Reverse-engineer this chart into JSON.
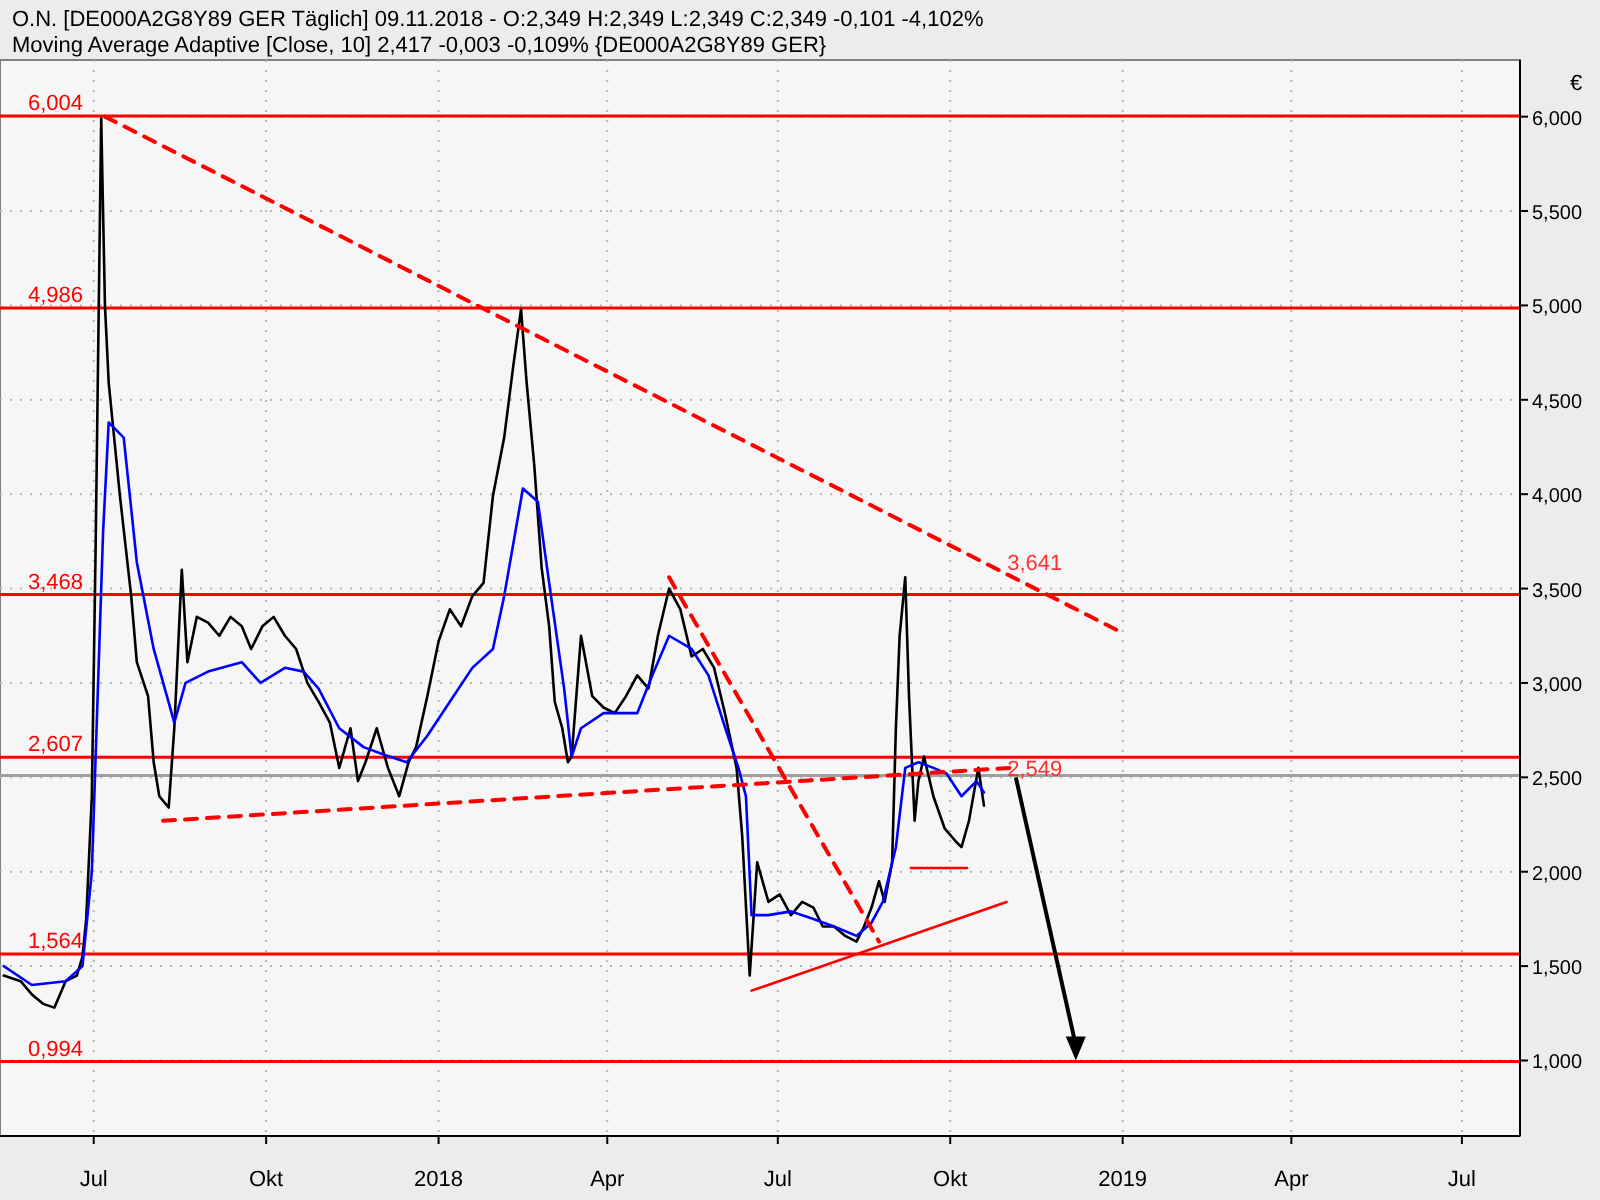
{
  "chart_data": {
    "type": "line",
    "title": "O.N. [DE000A2G8Y89 GER  Täglich] 09.11.2018 - O:2,349 H:2,349 L:2,349 C:2,349 -0,101 -4,102%",
    "subtitle": "Moving Average Adaptive [Close, 10] 2,417 -0,003 -0,109% {DE000A2G8Y89 GER}",
    "ylabel": "€",
    "xlim": [
      "2017-05-12",
      "2019-08-01"
    ],
    "ylim": [
      0.6,
      6.3
    ],
    "xticks": [
      {
        "value": "2017-07-01",
        "label": "Jul"
      },
      {
        "value": "2017-10-01",
        "label": "Okt"
      },
      {
        "value": "2018-01-01",
        "label": "2018"
      },
      {
        "value": "2018-04-01",
        "label": "Apr"
      },
      {
        "value": "2018-07-01",
        "label": "Jul"
      },
      {
        "value": "2018-10-01",
        "label": "Okt"
      },
      {
        "value": "2019-01-01",
        "label": "2019"
      },
      {
        "value": "2019-04-01",
        "label": "Apr"
      },
      {
        "value": "2019-07-01",
        "label": "Jul"
      }
    ],
    "yticks": [
      {
        "value": 1,
        "label": "1,000"
      },
      {
        "value": 1.5,
        "label": "1,500"
      },
      {
        "value": 2,
        "label": "2,000"
      },
      {
        "value": 2.5,
        "label": "2,500"
      },
      {
        "value": 3,
        "label": "3,000"
      },
      {
        "value": 3.5,
        "label": "3,500"
      },
      {
        "value": 4,
        "label": "4,000"
      },
      {
        "value": 4.5,
        "label": "4,500"
      },
      {
        "value": 5,
        "label": "5,000"
      },
      {
        "value": 5.5,
        "label": "5,500"
      },
      {
        "value": 6,
        "label": "6,000"
      }
    ],
    "grid": true,
    "series": [
      {
        "color": "#000000",
        "line_style": "solid",
        "x": [
          "2017-05-14",
          "2017-05-23",
          "2017-05-29",
          "2017-06-04",
          "2017-06-10",
          "2017-06-16",
          "2017-06-22",
          "2017-06-25",
          "2017-06-27",
          "2017-06-30",
          "2017-07-02",
          "2017-07-05",
          "2017-07-07",
          "2017-07-09",
          "2017-07-15",
          "2017-07-21",
          "2017-07-24",
          "2017-07-30",
          "2017-08-02",
          "2017-08-05",
          "2017-08-10",
          "2017-08-13",
          "2017-08-17",
          "2017-08-20",
          "2017-08-25",
          "2017-08-31",
          "2017-09-06",
          "2017-09-12",
          "2017-09-18",
          "2017-09-23",
          "2017-09-29",
          "2017-10-05",
          "2017-10-11",
          "2017-10-17",
          "2017-10-23",
          "2017-10-29",
          "2017-11-04",
          "2017-11-09",
          "2017-11-15",
          "2017-11-19",
          "2017-11-23",
          "2017-11-29",
          "2017-12-05",
          "2017-12-11",
          "2017-12-16",
          "2017-12-20",
          "2017-12-26",
          "2018-01-01",
          "2018-01-07",
          "2018-01-13",
          "2018-01-19",
          "2018-01-25",
          "2018-01-30",
          "2018-02-05",
          "2018-02-10",
          "2018-02-14",
          "2018-02-17",
          "2018-02-21",
          "2018-02-25",
          "2018-03-01",
          "2018-03-04",
          "2018-03-08",
          "2018-03-11",
          "2018-03-13",
          "2018-03-18",
          "2018-03-24",
          "2018-03-30",
          "2018-04-05",
          "2018-04-11",
          "2018-04-17",
          "2018-04-23",
          "2018-04-28",
          "2018-05-04",
          "2018-05-10",
          "2018-05-16",
          "2018-05-22",
          "2018-05-28",
          "2018-06-03",
          "2018-06-09",
          "2018-06-12",
          "2018-06-16",
          "2018-06-20",
          "2018-06-26",
          "2018-07-02",
          "2018-07-08",
          "2018-07-14",
          "2018-07-20",
          "2018-07-25",
          "2018-07-31",
          "2018-08-06",
          "2018-08-12",
          "2018-08-16",
          "2018-08-20",
          "2018-08-24",
          "2018-08-27",
          "2018-08-31",
          "2018-09-02",
          "2018-09-04",
          "2018-09-07",
          "2018-09-09",
          "2018-09-12",
          "2018-09-14",
          "2018-09-17",
          "2018-09-22",
          "2018-09-28",
          "2018-10-04",
          "2018-10-07",
          "2018-10-11",
          "2018-10-16",
          "2018-10-19"
        ],
        "values": [
          1.45,
          1.42,
          1.35,
          1.3,
          1.28,
          1.42,
          1.45,
          1.55,
          1.75,
          2.4,
          3.7,
          5.99,
          5.0,
          4.59,
          3.99,
          3.46,
          3.11,
          2.93,
          2.58,
          2.4,
          2.34,
          2.76,
          3.6,
          3.11,
          3.35,
          3.32,
          3.25,
          3.35,
          3.3,
          3.18,
          3.3,
          3.35,
          3.25,
          3.18,
          3.0,
          2.9,
          2.79,
          2.55,
          2.76,
          2.48,
          2.58,
          2.76,
          2.55,
          2.4,
          2.58,
          2.66,
          2.93,
          3.22,
          3.39,
          3.3,
          3.46,
          3.53,
          3.99,
          4.3,
          4.69,
          4.98,
          4.59,
          4.16,
          3.61,
          3.3,
          2.9,
          2.76,
          2.58,
          2.61,
          3.25,
          2.93,
          2.87,
          2.84,
          2.93,
          3.04,
          2.97,
          3.25,
          3.5,
          3.39,
          3.14,
          3.18,
          3.08,
          2.83,
          2.55,
          2.19,
          1.45,
          2.05,
          1.84,
          1.88,
          1.77,
          1.84,
          1.81,
          1.71,
          1.71,
          1.66,
          1.63,
          1.71,
          1.81,
          1.95,
          1.84,
          2.05,
          2.76,
          3.25,
          3.56,
          2.93,
          2.27,
          2.48,
          2.61,
          2.4,
          2.23,
          2.16,
          2.13,
          2.27,
          2.55,
          2.35
        ]
      },
      {
        "color": "#0000ff",
        "line_style": "solid",
        "x": [
          "2017-05-14",
          "2017-05-29",
          "2017-06-16",
          "2017-06-25",
          "2017-06-30",
          "2017-07-02",
          "2017-07-06",
          "2017-07-09",
          "2017-07-17",
          "2017-07-24",
          "2017-08-02",
          "2017-08-13",
          "2017-08-19",
          "2017-08-31",
          "2017-09-18",
          "2017-09-28",
          "2017-10-11",
          "2017-10-21",
          "2017-10-29",
          "2017-11-09",
          "2017-11-22",
          "2017-12-03",
          "2017-12-15",
          "2017-12-26",
          "2018-01-07",
          "2018-01-19",
          "2018-01-30",
          "2018-02-05",
          "2018-02-15",
          "2018-02-23",
          "2018-03-01",
          "2018-03-09",
          "2018-03-13",
          "2018-03-18",
          "2018-03-30",
          "2018-04-17",
          "2018-04-25",
          "2018-05-04",
          "2018-05-16",
          "2018-05-25",
          "2018-06-03",
          "2018-06-10",
          "2018-06-14",
          "2018-06-17",
          "2018-06-26",
          "2018-07-08",
          "2018-07-20",
          "2018-07-31",
          "2018-08-12",
          "2018-08-20",
          "2018-08-26",
          "2018-09-02",
          "2018-09-07",
          "2018-09-14",
          "2018-09-22",
          "2018-09-29",
          "2018-10-07",
          "2018-10-15",
          "2018-10-19"
        ],
        "values": [
          1.5,
          1.4,
          1.42,
          1.5,
          2.0,
          2.6,
          3.8,
          4.38,
          4.3,
          3.64,
          3.18,
          2.79,
          3.0,
          3.06,
          3.11,
          3.0,
          3.08,
          3.06,
          2.97,
          2.76,
          2.66,
          2.62,
          2.58,
          2.72,
          2.9,
          3.08,
          3.18,
          3.46,
          4.03,
          3.96,
          3.53,
          2.97,
          2.61,
          2.76,
          2.84,
          2.84,
          3.04,
          3.25,
          3.18,
          3.04,
          2.76,
          2.55,
          2.4,
          1.77,
          1.77,
          1.79,
          1.75,
          1.71,
          1.66,
          1.73,
          1.84,
          2.13,
          2.55,
          2.58,
          2.55,
          2.52,
          2.4,
          2.48,
          2.42
        ]
      },
      {
        "color": "#ff0000",
        "line_style": "dashed",
        "x": [
          "2017-07-07",
          "2018-12-31"
        ],
        "values": [
          6.0,
          3.27
        ]
      },
      {
        "color": "#ff0000",
        "line_style": "dashed",
        "x": [
          "2017-08-07",
          "2018-11-02"
        ],
        "values": [
          2.27,
          2.55
        ]
      },
      {
        "color": "#ff0000",
        "line_style": "dashed",
        "x": [
          "2018-05-04",
          "2018-08-24"
        ],
        "values": [
          3.56,
          1.63
        ]
      },
      {
        "color": "#ff0000",
        "line_style": "solid",
        "x": [
          "2018-06-17",
          "2018-10-31"
        ],
        "values": [
          1.37,
          1.84
        ]
      },
      {
        "color": "#ff0000",
        "line_style": "solid",
        "x": [
          "2018-09-10",
          "2018-10-10"
        ],
        "values": [
          2.02,
          2.02
        ]
      }
    ],
    "ref_lines": [
      {
        "axis": "y",
        "value": 6.004,
        "label": "6,004",
        "color": "#ff0000"
      },
      {
        "axis": "y",
        "value": 4.986,
        "label": "4,986",
        "color": "#ff0000"
      },
      {
        "axis": "y",
        "value": 3.468,
        "label": "3,468",
        "color": "#ff0000"
      },
      {
        "axis": "y",
        "value": 2.607,
        "label": "2,607",
        "color": "#ff0000"
      },
      {
        "axis": "y",
        "value": 1.564,
        "label": "1,564",
        "color": "#ff0000"
      },
      {
        "axis": "y",
        "value": 0.994,
        "label": "0,994",
        "color": "#ff0000"
      },
      {
        "axis": "y",
        "value": 2.51,
        "color": "#a0a0a0"
      }
    ],
    "annotations": [
      {
        "text": "3,641",
        "x": "2018-10-25",
        "y": 3.641
      },
      {
        "text": "2,549",
        "x": "2018-10-25",
        "y": 2.549
      }
    ]
  }
}
